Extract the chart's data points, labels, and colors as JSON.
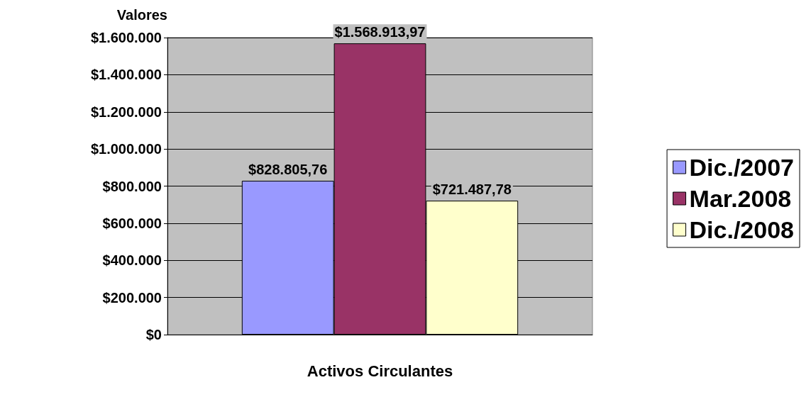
{
  "chart_data": {
    "type": "bar",
    "ylabel": "Valores",
    "categories": [
      "Activos Circulantes"
    ],
    "series": [
      {
        "name": "Dic./2007",
        "color": "#9999ff",
        "values": [
          828805.76
        ],
        "value_labels": [
          "$828.805,76"
        ]
      },
      {
        "name": "Mar.2008",
        "color": "#993366",
        "values": [
          1568913.97
        ],
        "value_labels": [
          "$1.568.913,97"
        ]
      },
      {
        "name": "Dic./2008",
        "color": "#ffffcc",
        "values": [
          721487.78
        ],
        "value_labels": [
          "$721.487,78"
        ]
      }
    ],
    "ylim": [
      0,
      1600000
    ],
    "yticks": [
      {
        "value": 0,
        "label": "$0"
      },
      {
        "value": 200000,
        "label": "$200.000"
      },
      {
        "value": 400000,
        "label": "$400.000"
      },
      {
        "value": 600000,
        "label": "$600.000"
      },
      {
        "value": 800000,
        "label": "$800.000"
      },
      {
        "value": 1000000,
        "label": "$1.000.000"
      },
      {
        "value": 1200000,
        "label": "$1.200.000"
      },
      {
        "value": 1400000,
        "label": "$1.400.000"
      },
      {
        "value": 1600000,
        "label": "$1.600.000"
      }
    ],
    "grid": "y",
    "legend": "right"
  }
}
